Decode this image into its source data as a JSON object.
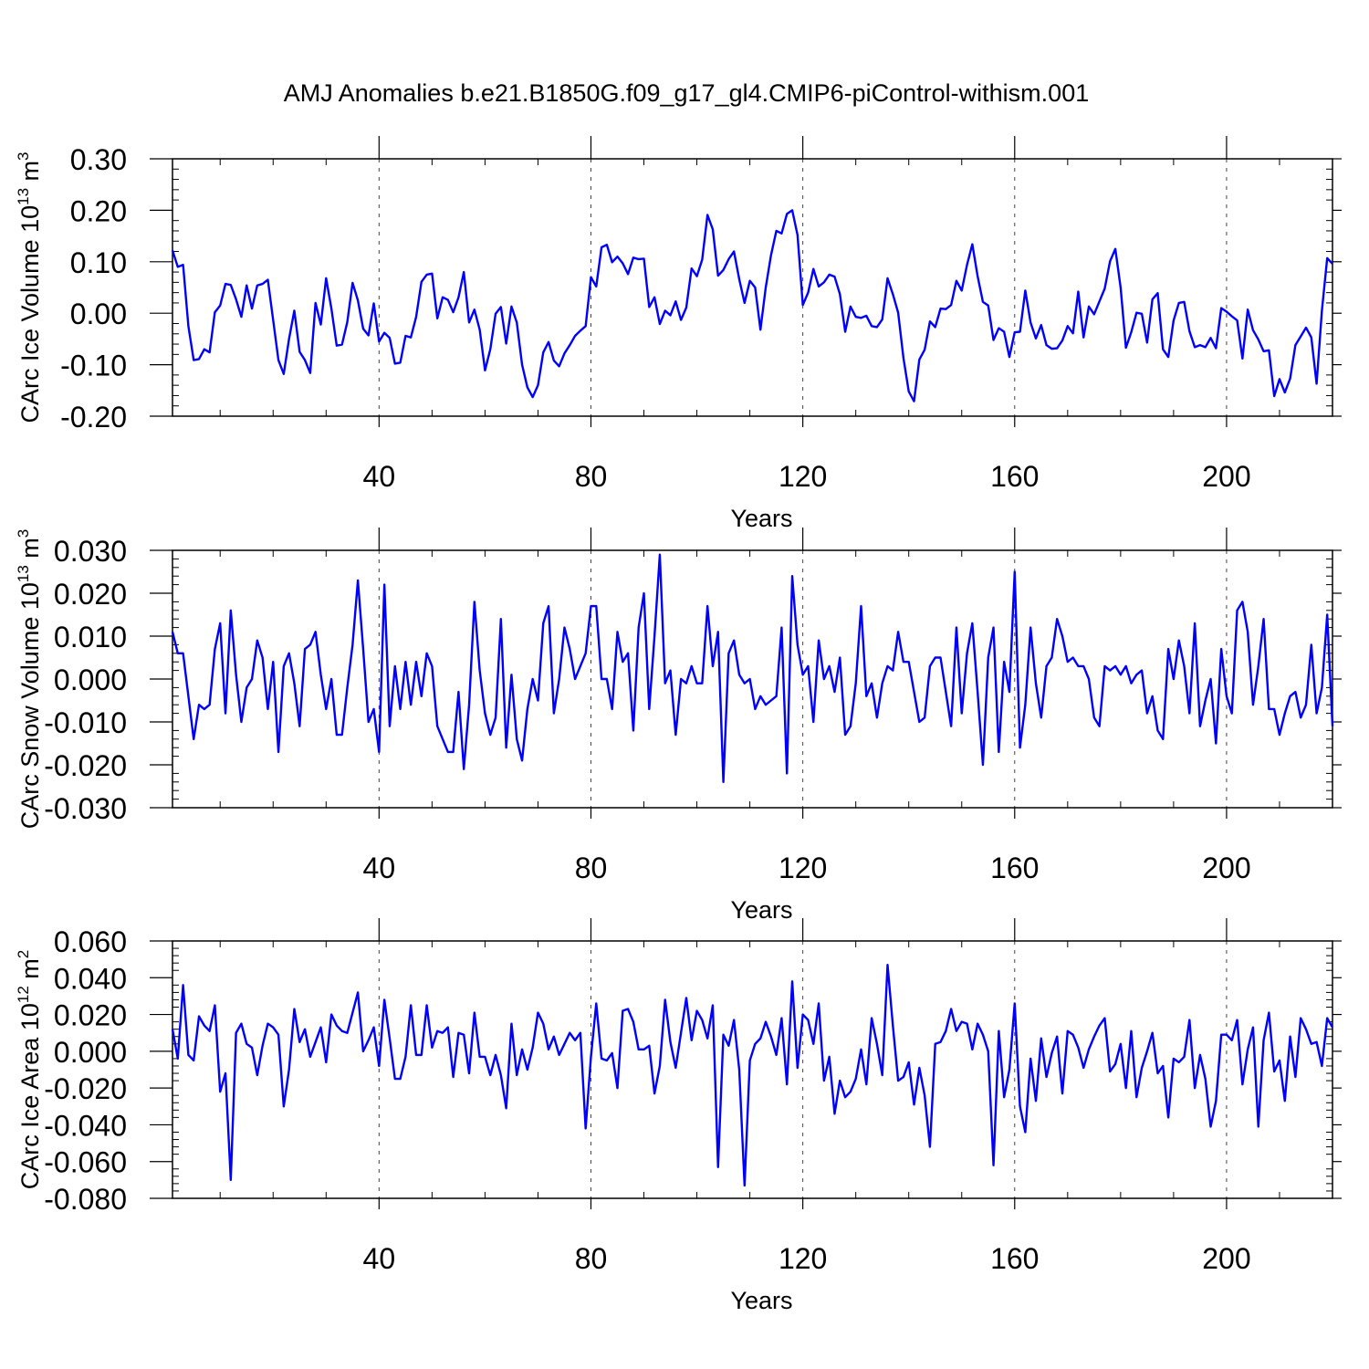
{
  "title": "AMJ Anomalies b.e21.B1850G.f09_g17_gl4.CMIP6-piControl-withism.001",
  "chart_data": [
    {
      "type": "line",
      "xlabel": "Years",
      "ylabel_main": "CArc Ice Volume 10",
      "ylabel_exp": "13",
      "ylabel_unit": " m",
      "ylabel_unit_exp": "3",
      "xlim": [
        1,
        220
      ],
      "ylim": [
        -0.2,
        0.3
      ],
      "xticks": [
        40,
        80,
        120,
        160,
        200
      ],
      "xtick_labels": [
        "40",
        "80",
        "120",
        "160",
        "200"
      ],
      "yticks": [
        -0.2,
        -0.1,
        0.0,
        0.1,
        0.2,
        0.3
      ],
      "ytick_labels": [
        "-0.20",
        "-0.10",
        "0.00",
        "0.10",
        "0.20",
        "0.30"
      ],
      "grid": "vertical-dashed-at-major-x",
      "series": [
        {
          "color": "#0000ff",
          "x_start": 1,
          "values": [
            0.122,
            0.09,
            0.094,
            -0.025,
            -0.091,
            -0.089,
            -0.07,
            -0.076,
            0.002,
            0.015,
            0.057,
            0.055,
            0.027,
            -0.007,
            0.054,
            0.009,
            0.054,
            0.057,
            0.065,
            -0.013,
            -0.091,
            -0.118,
            -0.05,
            0.005,
            -0.075,
            -0.091,
            -0.116,
            0.02,
            -0.022,
            0.068,
            0.009,
            -0.063,
            -0.061,
            -0.017,
            0.059,
            0.025,
            -0.03,
            -0.043,
            0.019,
            -0.055,
            -0.038,
            -0.048,
            -0.098,
            -0.096,
            -0.044,
            -0.047,
            -0.007,
            0.061,
            0.075,
            0.077,
            -0.01,
            0.031,
            0.026,
            0.002,
            0.031,
            0.08,
            -0.018,
            0.007,
            -0.032,
            -0.111,
            -0.07,
            -0.001,
            0.012,
            -0.059,
            0.013,
            -0.018,
            -0.1,
            -0.144,
            -0.163,
            -0.14,
            -0.076,
            -0.056,
            -0.092,
            -0.103,
            -0.078,
            -0.062,
            -0.044,
            -0.034,
            -0.025,
            0.07,
            0.052,
            0.128,
            0.133,
            0.099,
            0.11,
            0.097,
            0.076,
            0.108,
            0.105,
            0.106,
            0.012,
            0.031,
            -0.021,
            0.005,
            -0.004,
            0.023,
            -0.013,
            0.011,
            0.087,
            0.072,
            0.104,
            0.191,
            0.163,
            0.073,
            0.084,
            0.105,
            0.12,
            0.066,
            0.02,
            0.063,
            0.05,
            -0.032,
            0.05,
            0.113,
            0.16,
            0.155,
            0.193,
            0.2,
            0.152,
            0.016,
            0.04,
            0.086,
            0.052,
            0.06,
            0.075,
            0.071,
            0.037,
            -0.036,
            0.013,
            -0.007,
            -0.009,
            -0.005,
            -0.025,
            -0.027,
            -0.012,
            0.068,
            0.037,
            0.001,
            -0.087,
            -0.152,
            -0.171,
            -0.09,
            -0.071,
            -0.016,
            -0.027,
            0.009,
            0.008,
            0.016,
            0.063,
            0.044,
            0.094,
            0.134,
            0.072,
            0.022,
            0.015,
            -0.052,
            -0.029,
            -0.036,
            -0.085,
            -0.037,
            -0.036,
            0.044,
            -0.018,
            -0.049,
            -0.023,
            -0.062,
            -0.069,
            -0.068,
            -0.053,
            -0.025,
            -0.039,
            0.042,
            -0.047,
            0.013,
            -0.002,
            0.023,
            0.048,
            0.101,
            0.125,
            0.05,
            -0.067,
            -0.037,
            0.001,
            -0.001,
            -0.057,
            0.027,
            0.039,
            -0.07,
            -0.085,
            -0.014,
            0.02,
            0.022,
            -0.035,
            -0.066,
            -0.062,
            -0.066,
            -0.048,
            -0.068,
            0.01,
            0.003,
            -0.006,
            -0.014,
            -0.088,
            0.007,
            -0.033,
            -0.051,
            -0.074,
            -0.072,
            -0.161,
            -0.128,
            -0.154,
            -0.127,
            -0.062,
            -0.045,
            -0.028,
            -0.047,
            -0.137,
            0.005,
            0.107,
            0.096
          ]
        }
      ]
    },
    {
      "type": "line",
      "xlabel": "Years",
      "ylabel_main": "CArc Snow Volume 10",
      "ylabel_exp": "13",
      "ylabel_unit": " m",
      "ylabel_unit_exp": "3",
      "xlim": [
        1,
        220
      ],
      "ylim": [
        -0.03,
        0.03
      ],
      "xticks": [
        40,
        80,
        120,
        160,
        200
      ],
      "xtick_labels": [
        "40",
        "80",
        "120",
        "160",
        "200"
      ],
      "yticks": [
        -0.03,
        -0.02,
        -0.01,
        0.0,
        0.01,
        0.02,
        0.03
      ],
      "ytick_labels": [
        "-0.030",
        "-0.020",
        "-0.010",
        "0.000",
        "0.010",
        "0.020",
        "0.030"
      ],
      "grid": "vertical-dashed-at-major-x",
      "series": [
        {
          "color": "#0000ff",
          "x_start": 1,
          "values": [
            0.011,
            0.006,
            0.006,
            -0.004,
            -0.014,
            -0.006,
            -0.007,
            -0.006,
            0.007,
            0.013,
            -0.008,
            0.016,
            0.001,
            -0.01,
            -0.002,
            0.0,
            0.009,
            0.005,
            -0.007,
            0.004,
            -0.017,
            0.003,
            0.006,
            -0.001,
            -0.011,
            0.007,
            0.008,
            0.011,
            0.001,
            -0.007,
            0.0,
            -0.013,
            -0.013,
            -0.002,
            0.008,
            0.023,
            0.007,
            -0.01,
            -0.007,
            -0.017,
            0.022,
            -0.011,
            0.003,
            -0.007,
            0.004,
            -0.006,
            0.004,
            -0.004,
            0.006,
            0.003,
            -0.011,
            -0.014,
            -0.017,
            -0.017,
            -0.003,
            -0.021,
            -0.006,
            0.018,
            0.002,
            -0.008,
            -0.013,
            -0.009,
            0.014,
            -0.016,
            0.001,
            -0.014,
            -0.019,
            -0.007,
            0.0,
            -0.005,
            0.013,
            0.017,
            -0.008,
            0.0,
            0.012,
            0.007,
            0.0,
            0.003,
            0.006,
            0.017,
            0.017,
            0.0,
            0.0,
            -0.007,
            0.011,
            0.004,
            0.006,
            -0.012,
            0.012,
            0.02,
            -0.007,
            0.01,
            0.029,
            -0.001,
            0.002,
            -0.013,
            0.0,
            -0.001,
            0.003,
            -0.001,
            -0.001,
            0.017,
            0.003,
            0.011,
            -0.024,
            0.006,
            0.009,
            0.001,
            -0.001,
            0.0,
            -0.007,
            -0.004,
            -0.006,
            -0.005,
            -0.004,
            0.012,
            -0.022,
            0.024,
            0.008,
            0.001,
            0.003,
            -0.01,
            0.009,
            0.0,
            0.003,
            -0.003,
            0.005,
            -0.013,
            -0.011,
            -0.001,
            0.017,
            -0.004,
            -0.001,
            -0.009,
            -0.001,
            0.003,
            0.002,
            0.011,
            0.004,
            0.004,
            -0.003,
            -0.01,
            -0.009,
            0.003,
            0.005,
            0.005,
            -0.003,
            -0.011,
            0.012,
            -0.008,
            0.006,
            0.013,
            -0.003,
            -0.02,
            0.005,
            0.012,
            -0.017,
            0.004,
            -0.003,
            0.025,
            -0.016,
            -0.006,
            0.012,
            -0.001,
            -0.009,
            0.003,
            0.005,
            0.014,
            0.01,
            0.004,
            0.005,
            0.003,
            0.003,
            0.0,
            -0.009,
            -0.011,
            0.003,
            0.002,
            0.003,
            0.001,
            0.003,
            -0.001,
            0.001,
            0.002,
            -0.008,
            -0.004,
            -0.012,
            -0.014,
            0.007,
            0.0,
            0.009,
            0.003,
            -0.008,
            0.013,
            -0.011,
            -0.005,
            0.0,
            -0.015,
            0.007,
            -0.004,
            -0.008,
            0.016,
            0.018,
            0.011,
            -0.006,
            0.003,
            0.014,
            -0.007,
            -0.007,
            -0.013,
            -0.008,
            -0.004,
            -0.003,
            -0.009,
            -0.006,
            0.008,
            -0.008,
            -0.002,
            0.015,
            -0.011
          ]
        }
      ]
    },
    {
      "type": "line",
      "xlabel": "Years",
      "ylabel_main": "CArc Ice Area 10",
      "ylabel_exp": "12",
      "ylabel_unit": " m",
      "ylabel_unit_exp": "2",
      "xlim": [
        1,
        220
      ],
      "ylim": [
        -0.08,
        0.06
      ],
      "xticks": [
        40,
        80,
        120,
        160,
        200
      ],
      "xtick_labels": [
        "40",
        "80",
        "120",
        "160",
        "200"
      ],
      "yticks": [
        -0.08,
        -0.06,
        -0.04,
        -0.02,
        0.0,
        0.02,
        0.04,
        0.06
      ],
      "ytick_labels": [
        "-0.080",
        "-0.060",
        "-0.040",
        "-0.020",
        "0.000",
        "0.020",
        "0.040",
        "0.060"
      ],
      "grid": "vertical-dashed-at-major-x",
      "series": [
        {
          "color": "#0000ff",
          "x_start": 1,
          "values": [
            0.012,
            -0.004,
            0.036,
            -0.002,
            -0.005,
            0.019,
            0.014,
            0.011,
            0.025,
            -0.022,
            -0.012,
            -0.07,
            0.01,
            0.015,
            0.004,
            0.002,
            -0.013,
            0.003,
            0.015,
            0.013,
            0.009,
            -0.03,
            -0.01,
            0.023,
            0.005,
            0.012,
            -0.003,
            0.005,
            0.013,
            -0.006,
            0.02,
            0.014,
            0.011,
            0.01,
            0.021,
            0.032,
            0.0,
            0.006,
            0.013,
            -0.008,
            0.028,
            0.007,
            -0.015,
            -0.015,
            -0.003,
            0.025,
            -0.002,
            -0.002,
            0.025,
            0.002,
            0.011,
            0.01,
            0.013,
            -0.014,
            0.01,
            0.009,
            -0.012,
            0.021,
            -0.003,
            -0.003,
            -0.013,
            -0.002,
            -0.013,
            -0.031,
            0.015,
            -0.013,
            0.001,
            -0.01,
            0.002,
            0.021,
            0.015,
            0.001,
            0.008,
            -0.002,
            0.004,
            0.01,
            0.006,
            0.01,
            -0.042,
            -0.003,
            0.026,
            -0.004,
            -0.005,
            -0.001,
            -0.02,
            0.022,
            0.023,
            0.016,
            0.001,
            0.001,
            0.003,
            -0.023,
            -0.008,
            0.028,
            0.005,
            -0.009,
            0.01,
            0.029,
            0.006,
            0.022,
            0.017,
            0.007,
            0.025,
            -0.063,
            0.009,
            0.003,
            0.017,
            -0.01,
            -0.073,
            -0.005,
            0.004,
            0.007,
            0.016,
            0.008,
            -0.002,
            0.018,
            -0.018,
            0.038,
            -0.009,
            0.02,
            0.017,
            0.004,
            0.026,
            -0.016,
            -0.003,
            -0.034,
            -0.016,
            -0.025,
            -0.022,
            -0.015,
            0.001,
            -0.018,
            0.018,
            0.004,
            -0.013,
            0.047,
            0.014,
            -0.016,
            -0.014,
            -0.006,
            -0.029,
            -0.009,
            -0.024,
            -0.052,
            0.004,
            0.005,
            0.011,
            0.023,
            0.011,
            0.016,
            0.015,
            0.001,
            0.015,
            0.009,
            0.0,
            -0.062,
            0.011,
            -0.025,
            -0.01,
            0.026,
            -0.03,
            -0.044,
            -0.004,
            -0.027,
            0.007,
            -0.014,
            -0.001,
            0.008,
            -0.023,
            0.011,
            0.009,
            0.002,
            -0.009,
            0.001,
            0.008,
            0.014,
            0.018,
            -0.011,
            -0.007,
            0.004,
            -0.02,
            0.011,
            -0.025,
            -0.009,
            0.0,
            0.01,
            -0.012,
            -0.008,
            -0.036,
            -0.004,
            -0.006,
            -0.003,
            0.017,
            -0.02,
            -0.002,
            -0.015,
            -0.041,
            -0.027,
            0.009,
            0.009,
            0.006,
            0.017,
            -0.018,
            0.001,
            0.013,
            -0.041,
            0.006,
            0.021,
            -0.011,
            -0.005,
            -0.027,
            0.008,
            -0.014,
            0.018,
            0.012,
            0.004,
            0.005,
            -0.008,
            0.018,
            0.013
          ]
        }
      ]
    }
  ]
}
